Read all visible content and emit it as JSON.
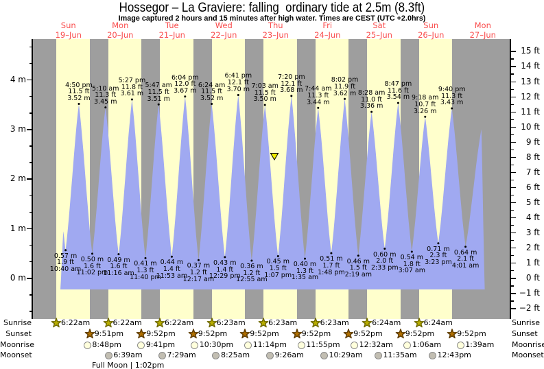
{
  "title": "Hossegor – La Graviere: falling  ordinary tide at 2.5m (8.3ft)",
  "subtitle": "Image captured 2 hours and 15 minutes after high water. Times are CEST (UTC +2.0hrs)",
  "days": [
    {
      "name": "Sun",
      "date": "19–Jun"
    },
    {
      "name": "Mon",
      "date": "20–Jun"
    },
    {
      "name": "Tue",
      "date": "21–Jun"
    },
    {
      "name": "Wed",
      "date": "22–Jun"
    },
    {
      "name": "Thu",
      "date": "23–Jun"
    },
    {
      "name": "Fri",
      "date": "24–Jun"
    },
    {
      "name": "Sat",
      "date": "25–Jun"
    },
    {
      "name": "Sun",
      "date": "26–Jun"
    },
    {
      "name": "Mon",
      "date": "27–Jun"
    }
  ],
  "chart_data": {
    "type": "area",
    "title": "Hossegor – La Graviere: falling  ordinary tide at 2.5m (8.3ft)",
    "x_axis": "time (days Sun 19-Jun to Mon 27-Jun)",
    "y_axis_left": {
      "unit": "m",
      "tick_labels": [
        "4 m",
        "3 m",
        "2 m",
        "1 m",
        "0 m"
      ],
      "tick_values": [
        4,
        3,
        2,
        1,
        0
      ]
    },
    "y_axis_right": {
      "unit": "ft",
      "min": -2,
      "max": 15,
      "step": 1
    },
    "high_tides": [
      {
        "day": 0,
        "time": "4:50 pm",
        "ft": 11.5,
        "m": 3.52
      },
      {
        "day": 1,
        "time": "5:10 am",
        "ft": 11.3,
        "m": 3.45
      },
      {
        "day": 1,
        "time": "5:27 pm",
        "ft": 11.8,
        "m": 3.61
      },
      {
        "day": 2,
        "time": "5:47 am",
        "ft": 11.5,
        "m": 3.51
      },
      {
        "day": 2,
        "time": "6:04 pm",
        "ft": 12.0,
        "m": 3.67
      },
      {
        "day": 3,
        "time": "6:24 am",
        "ft": 11.5,
        "m": 3.52
      },
      {
        "day": 3,
        "time": "6:41 pm",
        "ft": 12.1,
        "m": 3.7
      },
      {
        "day": 4,
        "time": "7:03 am",
        "ft": 11.5,
        "m": 3.5
      },
      {
        "day": 4,
        "time": "7:20 pm",
        "ft": 12.1,
        "m": 3.68
      },
      {
        "day": 5,
        "time": "7:44 am",
        "ft": 11.3,
        "m": 3.44
      },
      {
        "day": 5,
        "time": "8:02 pm",
        "ft": 11.9,
        "m": 3.62
      },
      {
        "day": 6,
        "time": "8:28 am",
        "ft": 11.0,
        "m": 3.36
      },
      {
        "day": 6,
        "time": "8:47 pm",
        "ft": 11.6,
        "m": 3.54
      },
      {
        "day": 7,
        "time": "9:18 am",
        "ft": 10.7,
        "m": 3.26
      },
      {
        "day": 7,
        "time": "9:40 pm",
        "ft": 11.3,
        "m": 3.43
      }
    ],
    "low_tides": [
      {
        "day": 0,
        "time": "10:40 am",
        "ft": 1.9,
        "m": 0.57
      },
      {
        "day": 0,
        "time": "11:02 pm",
        "ft": 1.6,
        "m": 0.5
      },
      {
        "day": 1,
        "time": "11:16 am",
        "ft": 1.6,
        "m": 0.49
      },
      {
        "day": 1,
        "time": "11:40 pm",
        "ft": 1.3,
        "m": 0.41
      },
      {
        "day": 2,
        "time": "11:53 am",
        "ft": 1.4,
        "m": 0.44
      },
      {
        "day": 3,
        "time": "12:17 am",
        "ft": 1.2,
        "m": 0.37
      },
      {
        "day": 3,
        "time": "12:29 pm",
        "ft": 1.4,
        "m": 0.43
      },
      {
        "day": 4,
        "time": "12:55 am",
        "ft": 1.2,
        "m": 0.36
      },
      {
        "day": 4,
        "time": "1:07 pm",
        "ft": 1.5,
        "m": 0.45
      },
      {
        "day": 5,
        "time": "1:35 am",
        "ft": 1.3,
        "m": 0.4
      },
      {
        "day": 5,
        "time": "1:48 pm",
        "ft": 1.7,
        "m": 0.51
      },
      {
        "day": 6,
        "time": "2:19 am",
        "ft": 1.5,
        "m": 0.46
      },
      {
        "day": 6,
        "time": "2:33 pm",
        "ft": 2.0,
        "m": 0.6
      },
      {
        "day": 7,
        "time": "3:07 am",
        "ft": 1.8,
        "m": 0.54
      },
      {
        "day": 7,
        "time": "3:23 pm",
        "ft": 2.3,
        "m": 0.71
      },
      {
        "day": 8,
        "time": "4:01 am",
        "ft": 2.1,
        "m": 0.64
      }
    ],
    "current_marker": {
      "day": 4,
      "time": "9:18 am",
      "m": 2.5
    }
  },
  "astro": {
    "captions": {
      "sunrise": "Sunrise",
      "sunset": "Sunset",
      "moonrise": "Moonrise",
      "moonset": "Moonset"
    },
    "sunrise": [
      {
        "day": 0,
        "time": "6:22am"
      },
      {
        "day": 1,
        "time": "6:22am"
      },
      {
        "day": 2,
        "time": "6:22am"
      },
      {
        "day": 3,
        "time": "6:23am"
      },
      {
        "day": 4,
        "time": "6:23am"
      },
      {
        "day": 5,
        "time": "6:23am"
      },
      {
        "day": 6,
        "time": "6:24am"
      },
      {
        "day": 7,
        "time": "6:24am"
      }
    ],
    "sunset": [
      {
        "day": 0,
        "time": "9:51pm"
      },
      {
        "day": 1,
        "time": "9:52pm"
      },
      {
        "day": 2,
        "time": "9:52pm"
      },
      {
        "day": 3,
        "time": "9:52pm"
      },
      {
        "day": 4,
        "time": "9:52pm"
      },
      {
        "day": 5,
        "time": "9:52pm"
      },
      {
        "day": 6,
        "time": "9:52pm"
      },
      {
        "day": 7,
        "time": "9:52pm"
      }
    ],
    "moonrise": [
      {
        "day": 0,
        "time": "8:48pm"
      },
      {
        "day": 1,
        "time": "9:41pm"
      },
      {
        "day": 2,
        "time": "10:30pm"
      },
      {
        "day": 3,
        "time": "11:14pm"
      },
      {
        "day": 4,
        "time": "11:55pm"
      },
      {
        "day": 6,
        "time": "12:32am"
      },
      {
        "day": 7,
        "time": "1:06am"
      },
      {
        "day": 8,
        "time": "1:39am"
      }
    ],
    "moonset": [
      {
        "day": 1,
        "time": "6:39am"
      },
      {
        "day": 2,
        "time": "7:29am"
      },
      {
        "day": 3,
        "time": "8:25am"
      },
      {
        "day": 4,
        "time": "9:26am"
      },
      {
        "day": 5,
        "time": "10:29am"
      },
      {
        "day": 6,
        "time": "11:35am"
      },
      {
        "day": 7,
        "time": "12:43pm"
      }
    ],
    "full_moon": "Full Moon | 1:02pm"
  },
  "colors": {
    "day_band": "#ffffcc",
    "night_band": "#9e9e9e",
    "tide_fill": "#a0a9f1",
    "day_label_red": "#f94c4c",
    "marker_yellow": "#f0ee00",
    "sunrise_star": "#b8ae00",
    "sunrise_star_edge": "#6e6800",
    "sunset_star": "#b06f00",
    "sunset_star_edge": "#5c3a00",
    "moonrise_fill": "#ffffdc",
    "moonset_fill": "#c2beb2",
    "moon_edge": "#8a8a8a"
  }
}
